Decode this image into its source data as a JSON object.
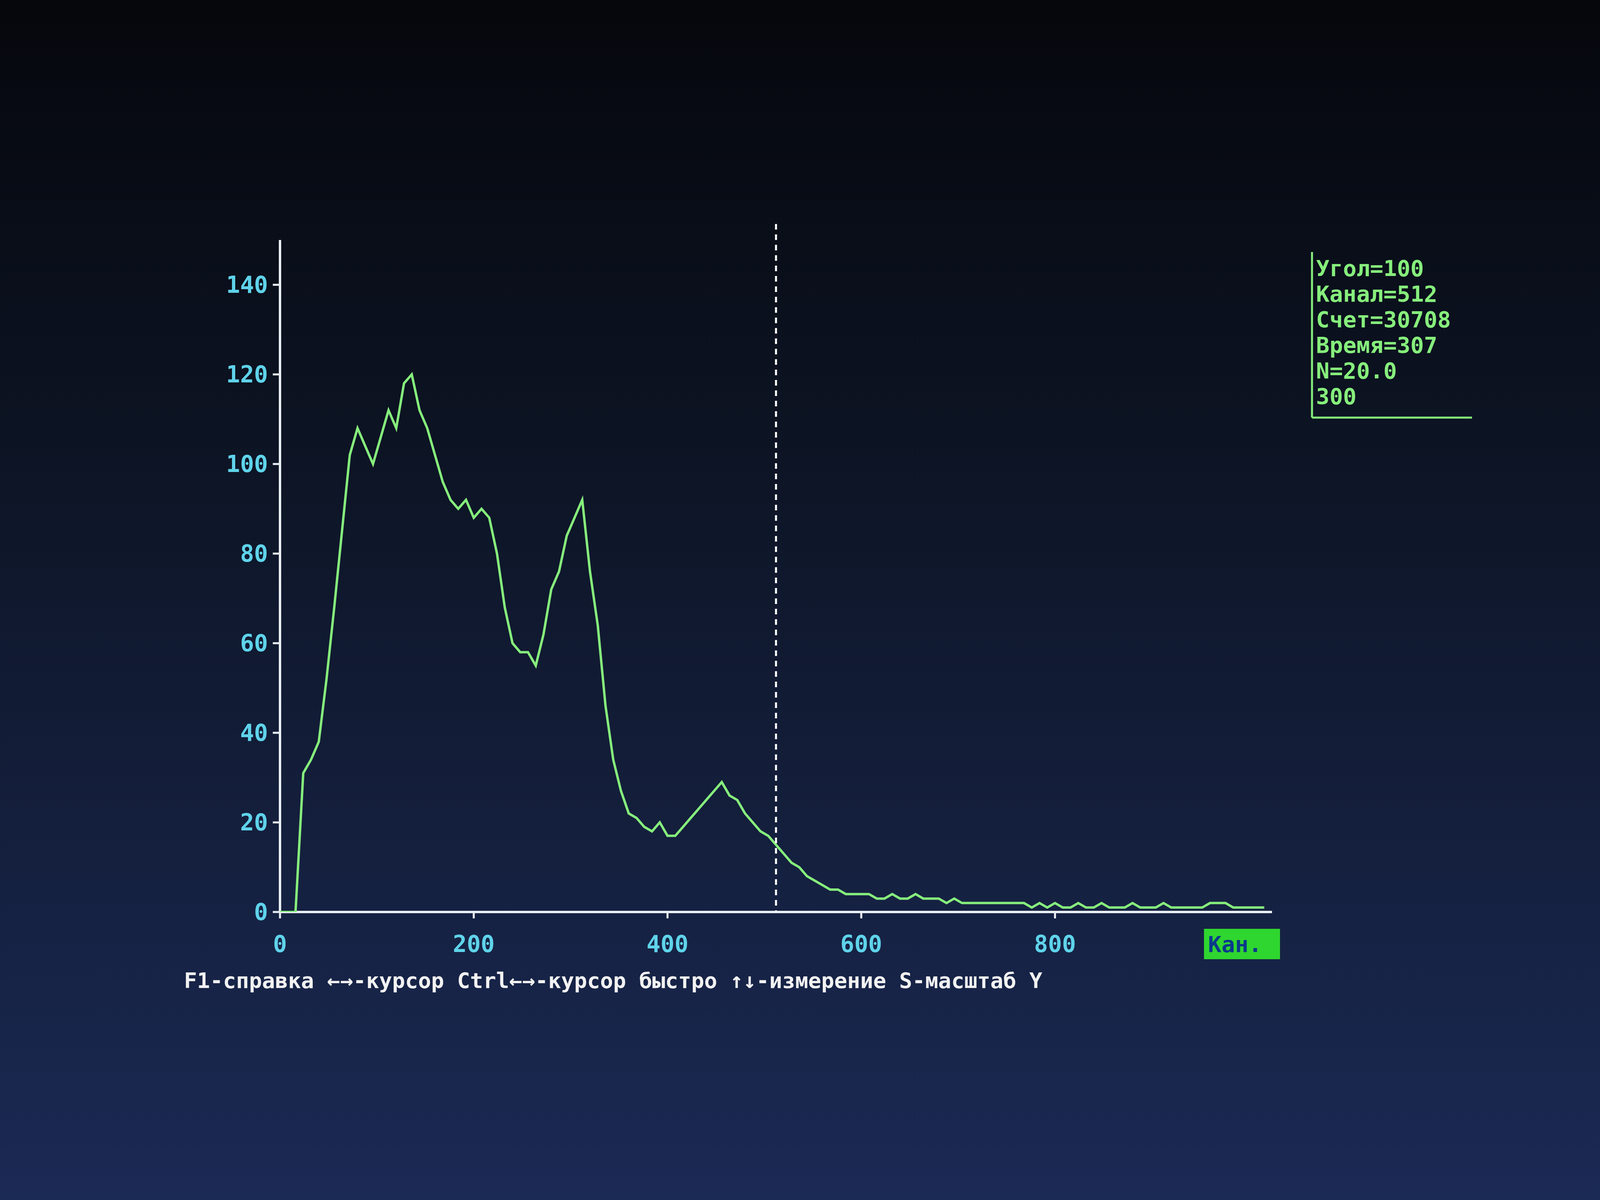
{
  "chart_data": {
    "type": "line",
    "x_label": "Кан.",
    "x": [
      0,
      8,
      16,
      24,
      32,
      40,
      48,
      56,
      64,
      72,
      80,
      88,
      96,
      104,
      112,
      120,
      128,
      136,
      144,
      152,
      160,
      168,
      176,
      184,
      192,
      200,
      208,
      216,
      224,
      232,
      240,
      248,
      256,
      264,
      272,
      280,
      288,
      296,
      304,
      312,
      320,
      328,
      336,
      344,
      352,
      360,
      368,
      376,
      384,
      392,
      400,
      408,
      416,
      424,
      432,
      440,
      448,
      456,
      464,
      472,
      480,
      488,
      496,
      504,
      512,
      520,
      528,
      536,
      544,
      552,
      560,
      568,
      576,
      584,
      592,
      600,
      608,
      616,
      624,
      632,
      640,
      648,
      656,
      664,
      672,
      680,
      688,
      696,
      704,
      712,
      720,
      728,
      736,
      744,
      752,
      760,
      768,
      776,
      784,
      792,
      800,
      808,
      816,
      824,
      832,
      840,
      848,
      856,
      864,
      872,
      880,
      888,
      896,
      904,
      912,
      920,
      928,
      936,
      944,
      952,
      960,
      968,
      976,
      984,
      992,
      1000,
      1008,
      1016
    ],
    "values": [
      0,
      0,
      0,
      31,
      34,
      38,
      52,
      68,
      85,
      102,
      108,
      104,
      100,
      106,
      112,
      108,
      118,
      120,
      112,
      108,
      102,
      96,
      92,
      90,
      92,
      88,
      90,
      88,
      80,
      68,
      60,
      58,
      58,
      55,
      62,
      72,
      76,
      84,
      88,
      92,
      76,
      64,
      46,
      34,
      27,
      22,
      21,
      19,
      18,
      20,
      17,
      17,
      19,
      21,
      23,
      25,
      27,
      29,
      26,
      25,
      22,
      20,
      18,
      17,
      15,
      13,
      11,
      10,
      8,
      7,
      6,
      5,
      5,
      4,
      4,
      4,
      4,
      3,
      3,
      4,
      3,
      3,
      4,
      3,
      3,
      3,
      2,
      3,
      2,
      2,
      2,
      2,
      2,
      2,
      2,
      2,
      2,
      1,
      2,
      1,
      2,
      1,
      1,
      2,
      1,
      1,
      2,
      1,
      1,
      1,
      2,
      1,
      1,
      1,
      2,
      1,
      1,
      1,
      1,
      1,
      2,
      2,
      2,
      1,
      1,
      1,
      1,
      1
    ],
    "color": "#86ee7c",
    "line_style": "solid",
    "xlim": [
      0,
      1024
    ],
    "xticks": [
      0,
      200,
      400,
      600,
      800
    ],
    "ylim": [
      0,
      150
    ],
    "yticks": [
      0,
      20,
      40,
      60,
      80,
      100,
      120,
      140
    ],
    "grid": false,
    "cursor": 512,
    "info": [
      "Угол=100",
      "Канал=512",
      "Счет=30708",
      "Время=307",
      "N=20.0",
      "300"
    ],
    "help": "F1-справка ←→-курсор Ctrl←→-курсор быстро ↑↓-измерение S-масштаб Y"
  }
}
